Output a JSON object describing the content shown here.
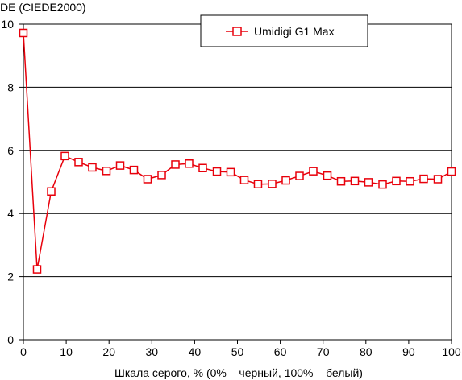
{
  "chart_data": {
    "type": "line",
    "title": "",
    "ylabel": "DE (CIEDE2000)",
    "xlabel": "Шкала серого, % (0% – черный, 100% – белый)",
    "xlim": [
      0,
      100
    ],
    "ylim": [
      0,
      10
    ],
    "x_ticks": [
      0,
      10,
      20,
      30,
      40,
      50,
      60,
      70,
      80,
      90,
      100
    ],
    "y_ticks": [
      0,
      2,
      4,
      6,
      8,
      10
    ],
    "grid": "horizontal",
    "legend_position": "top-right",
    "colors": {
      "series": "#e8000b",
      "marker_fill": "#ffffff",
      "grid": "#000000",
      "axis": "#000000"
    },
    "series": [
      {
        "name": "Umidigi G1 Max",
        "marker": "square",
        "x": [
          0,
          3.2,
          6.5,
          9.7,
          12.9,
          16.1,
          19.4,
          22.6,
          25.8,
          29.0,
          32.3,
          35.5,
          38.7,
          41.9,
          45.2,
          48.4,
          51.6,
          54.8,
          58.1,
          61.3,
          64.5,
          67.7,
          71.0,
          74.2,
          77.4,
          80.6,
          83.9,
          87.1,
          90.3,
          93.5,
          96.8,
          100
        ],
        "y": [
          9.72,
          2.23,
          4.7,
          5.82,
          5.63,
          5.46,
          5.35,
          5.52,
          5.38,
          5.09,
          5.22,
          5.55,
          5.58,
          5.44,
          5.33,
          5.31,
          5.06,
          4.93,
          4.94,
          5.05,
          5.19,
          5.34,
          5.2,
          5.02,
          5.03,
          4.99,
          4.92,
          5.03,
          5.02,
          5.1,
          5.09,
          5.33
        ]
      }
    ]
  }
}
